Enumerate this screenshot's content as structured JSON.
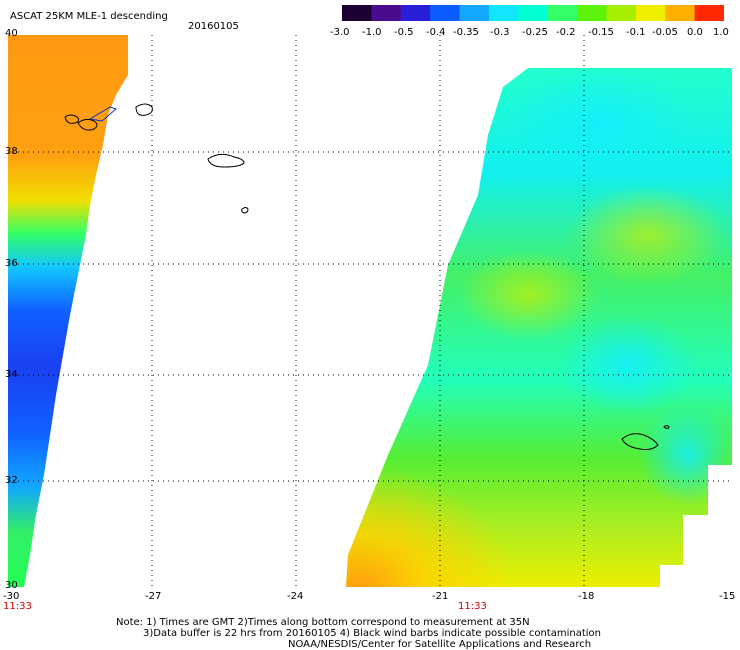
{
  "header": {
    "title": "ASCAT 25KM MLE-1 descending",
    "date": "20160105"
  },
  "colorbar": {
    "labels": [
      "-3.0",
      "-1.0",
      "-0.5",
      "-0.4",
      "-0.35",
      "-0.3",
      "-0.25",
      "-0.2",
      "-0.15",
      "-0.1",
      "-0.05",
      "0.0",
      "1.0"
    ],
    "colors": [
      "#1a0033",
      "#4a0a8c",
      "#2a1fd8",
      "#0a5cff",
      "#12a8ff",
      "#12e6ff",
      "#00ffd2",
      "#33ff66",
      "#5cf20a",
      "#a8ee00",
      "#eeee00",
      "#ffb000",
      "#ff2a00"
    ]
  },
  "axes": {
    "lat_labels": [
      "40",
      "38",
      "36",
      "34",
      "32",
      "30"
    ],
    "lon_labels": [
      "-30",
      "-27",
      "-24",
      "-21",
      "-18",
      "-15"
    ],
    "lon_range": [
      -30,
      -15
    ],
    "lat_range": [
      30,
      40
    ],
    "gridlines": "dotted"
  },
  "swaths": {
    "left_time": "11:33",
    "right_time": "11:33"
  },
  "notes": {
    "line1": "Note: 1) Times are GMT 2)Times along bottom correspond to measurement at 35N",
    "line2": "3)Data buffer is 22 hrs from 20160105 4) Black wind barbs indicate possible contamination",
    "line3": "NOAA/NESDIS/Center for Satellite Applications and Research"
  }
}
